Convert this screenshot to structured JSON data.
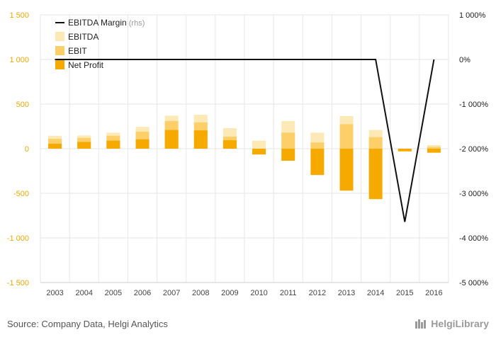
{
  "colors": {
    "ebitda": "#fde9b6",
    "ebit": "#fccf68",
    "net_profit": "#f6aa00",
    "margin_line": "#111111",
    "grid": "#e6e6e6",
    "left_axis_text": "#f0a800"
  },
  "chart_data": {
    "type": "bar",
    "categories": [
      "2003",
      "2004",
      "2005",
      "2006",
      "2007",
      "2008",
      "2009",
      "2010",
      "2011",
      "2012",
      "2013",
      "2014",
      "2015",
      "2016"
    ],
    "series": [
      {
        "name": "EBITDA",
        "axis": "left",
        "values": [
          145,
          148,
          180,
          245,
          370,
          380,
          230,
          90,
          310,
          180,
          365,
          210,
          -10,
          40
        ]
      },
      {
        "name": "EBIT",
        "axis": "left",
        "values": [
          110,
          120,
          145,
          190,
          310,
          295,
          135,
          0,
          180,
          70,
          275,
          130,
          -25,
          20
        ]
      },
      {
        "name": "Net Profit",
        "axis": "left",
        "values": [
          55,
          75,
          90,
          105,
          210,
          205,
          95,
          -65,
          -135,
          -295,
          -470,
          -565,
          -30,
          -45
        ]
      },
      {
        "name": "EBITDA Margin",
        "axis": "right",
        "type": "line",
        "values": [
          0,
          0,
          0,
          0,
          0,
          0,
          0,
          0,
          0,
          0,
          0,
          0,
          -3640,
          0
        ]
      }
    ],
    "legend": [
      {
        "label": "EBITDA Margin",
        "note": "(rhs)",
        "kind": "line"
      },
      {
        "label": "EBITDA",
        "kind": "box"
      },
      {
        "label": "EBIT",
        "kind": "box"
      },
      {
        "label": "Net Profit",
        "kind": "box"
      }
    ],
    "legend_placement": "top-left",
    "ylim": [
      -1500,
      1500
    ],
    "y_ticks": [
      1500,
      1000,
      500,
      0,
      -500,
      -1000,
      -1500
    ],
    "y_tick_labels": [
      "1 500",
      "1 000",
      "500",
      "0",
      "-500",
      "-1 000",
      "-1 500"
    ],
    "y2lim": [
      -5000,
      1000
    ],
    "y2_ticks": [
      1000,
      0,
      -1000,
      -2000,
      -3000,
      -4000,
      -5000
    ],
    "y2_tick_labels": [
      "1 000%",
      "0%",
      "-1 000%",
      "-2 000%",
      "-3 000%",
      "-4 000%",
      "-5 000%"
    ],
    "grid": true
  },
  "footer": {
    "source": "Source: Company Data, Helgi Analytics",
    "brand": "HelgiLibrary"
  }
}
